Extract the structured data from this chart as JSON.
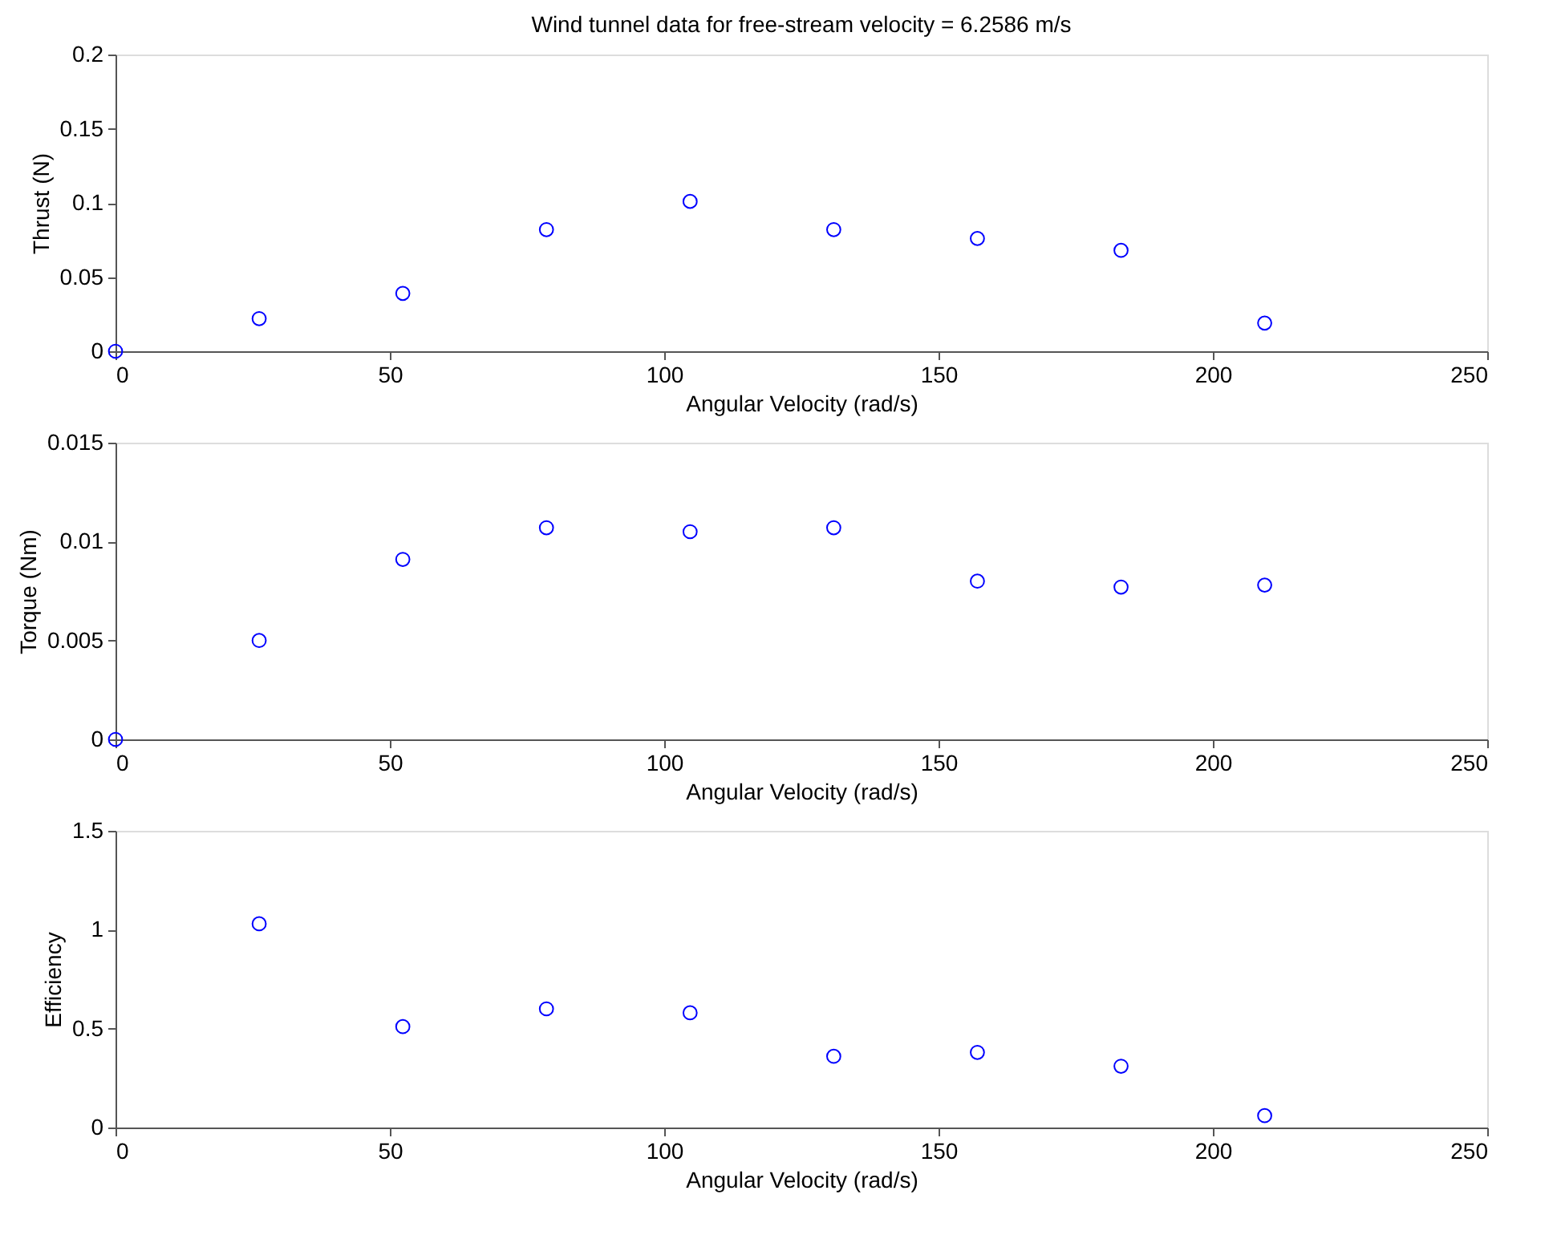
{
  "chart_data": [
    {
      "type": "scatter",
      "title": "Wind tunnel data for free-stream velocity = 6.2586 m/s",
      "xlabel": "Angular Velocity (rad/s)",
      "ylabel": "Thrust (N)",
      "x": [
        0,
        26.18,
        52.36,
        78.54,
        104.72,
        130.9,
        157.08,
        183.26,
        209.44
      ],
      "series": [
        {
          "color": "#0000ff",
          "values": [
            0,
            0.022,
            0.039,
            0.082,
            0.101,
            0.082,
            0.076,
            0.068,
            0.019
          ]
        }
      ],
      "xlim": [
        0,
        250
      ],
      "xticks": [
        0,
        50,
        100,
        150,
        200,
        250
      ],
      "ylim": [
        0,
        0.2
      ],
      "yticks": [
        0,
        0.05,
        0.1,
        0.15,
        0.2
      ],
      "marker": "circle",
      "grid": false
    },
    {
      "type": "scatter",
      "xlabel": "Angular Velocity (rad/s)",
      "ylabel": "Torque (Nm)",
      "x": [
        0,
        26.18,
        52.36,
        78.54,
        104.72,
        130.9,
        157.08,
        183.26,
        209.44
      ],
      "series": [
        {
          "color": "#0000ff",
          "values": [
            0,
            0.005,
            0.0091,
            0.0107,
            0.0105,
            0.0107,
            0.008,
            0.0077,
            0.0078
          ]
        }
      ],
      "xlim": [
        0,
        250
      ],
      "xticks": [
        0,
        50,
        100,
        150,
        200,
        250
      ],
      "ylim": [
        0,
        0.015
      ],
      "yticks": [
        0,
        0.005,
        0.01,
        0.015
      ],
      "marker": "circle",
      "grid": false
    },
    {
      "type": "scatter",
      "xlabel": "Angular Velocity (rad/s)",
      "ylabel": "Efficiency",
      "x": [
        26.18,
        52.36,
        78.54,
        104.72,
        130.9,
        157.08,
        183.26,
        209.44
      ],
      "series": [
        {
          "color": "#0000ff",
          "values": [
            1.03,
            0.51,
            0.6,
            0.58,
            0.36,
            0.38,
            0.31,
            0.06
          ]
        }
      ],
      "xlim": [
        0,
        250
      ],
      "xticks": [
        0,
        50,
        100,
        150,
        200,
        250
      ],
      "ylim": [
        0,
        1.5
      ],
      "yticks": [
        0,
        0.5,
        1,
        1.5
      ],
      "marker": "circle",
      "grid": false
    }
  ]
}
